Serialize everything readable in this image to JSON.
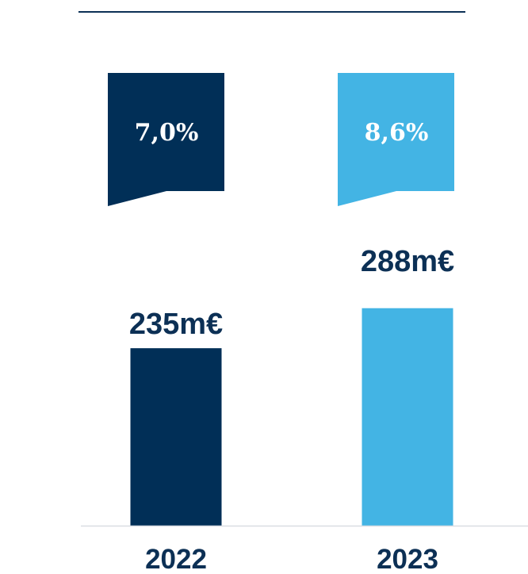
{
  "colors": {
    "primary": "#012f57",
    "secondary": "#43b4e4",
    "text": "#0c3055",
    "divider": "#0c3055",
    "baseline": "#d9dde2"
  },
  "chart_data": {
    "type": "bar",
    "title": "",
    "xlabel": "",
    "ylabel": "",
    "categories": [
      "2022",
      "2023"
    ],
    "values": [
      235,
      288
    ],
    "value_labels": [
      "235m€",
      "288m€"
    ],
    "percentages": [
      7.0,
      8.6
    ],
    "percentage_labels": [
      "7,0%",
      "8,6%"
    ],
    "ylim": [
      0,
      420
    ],
    "grid": false,
    "legend": "none"
  }
}
